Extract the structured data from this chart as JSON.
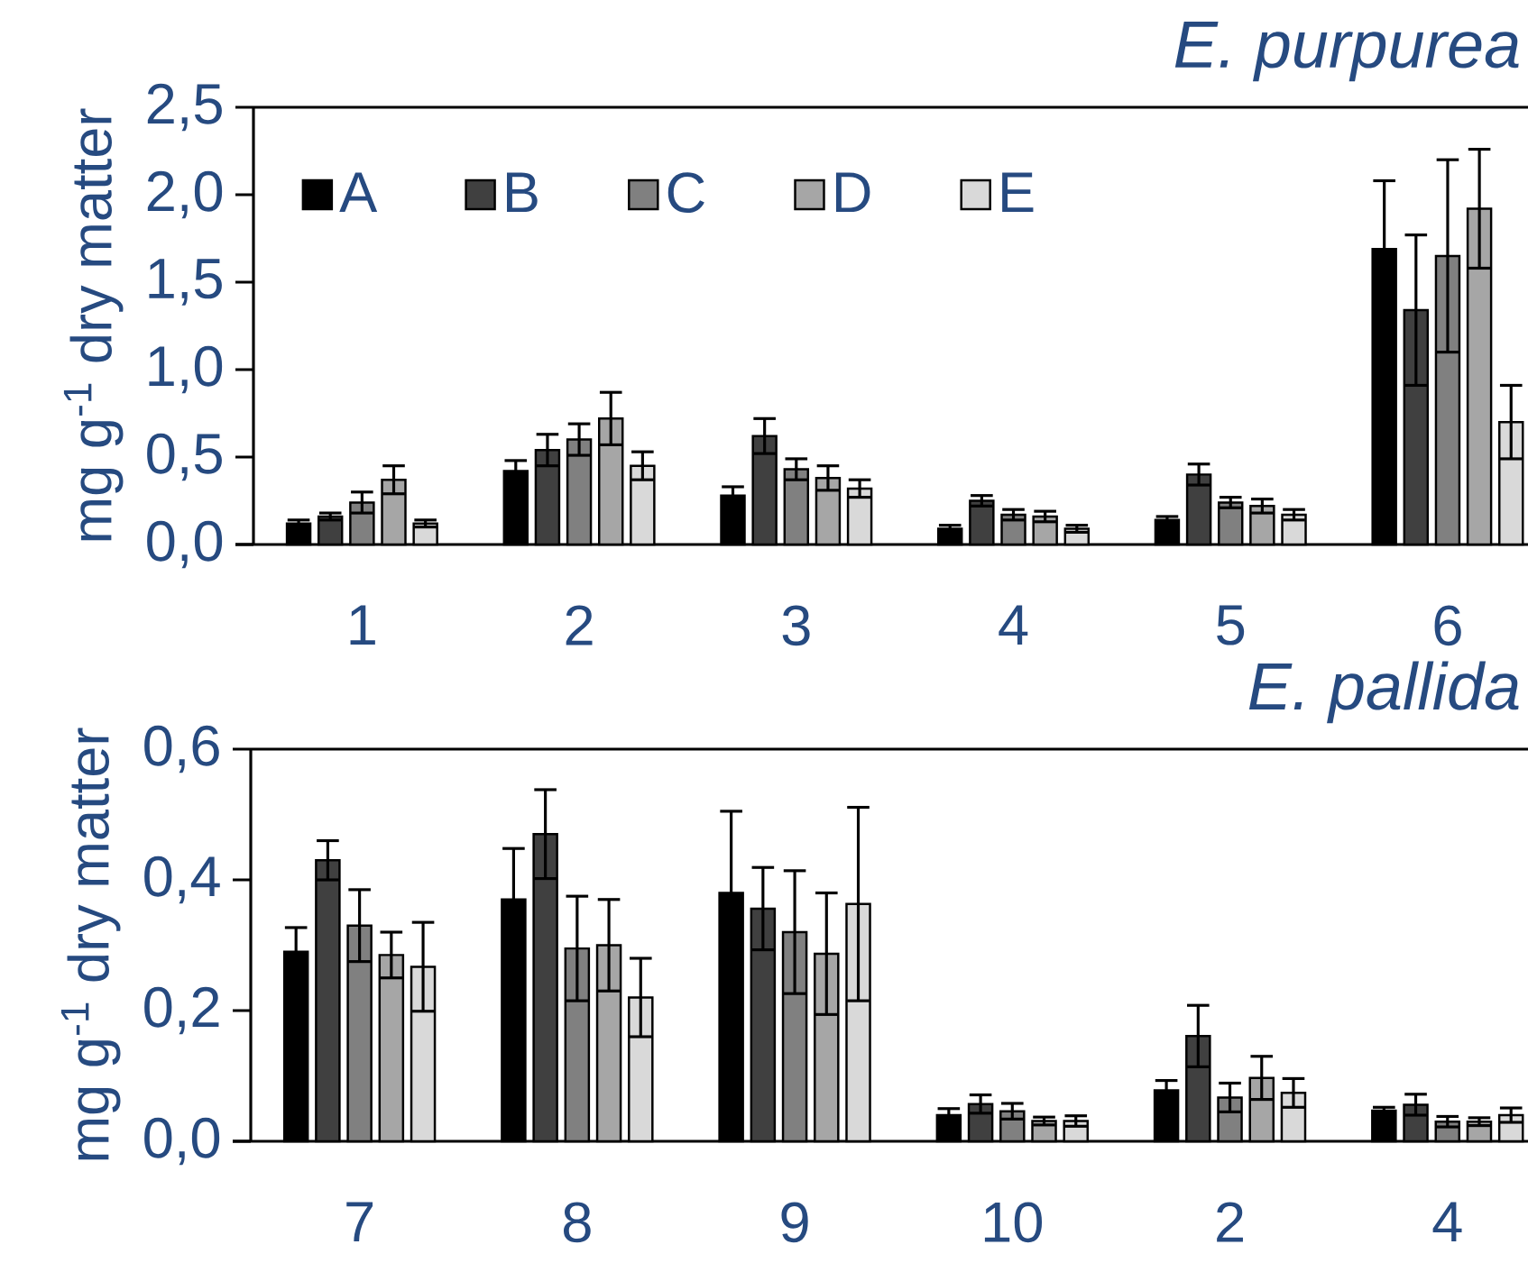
{
  "chart_data": [
    {
      "type": "bar",
      "title": "E. purpurea",
      "ylabel": "mg g$^{-1}$ dry matter",
      "categories": [
        "1",
        "2",
        "3",
        "4",
        "5",
        "6"
      ],
      "ylim": [
        0,
        2.5
      ],
      "yticks": [
        {
          "value": 0,
          "label": "0,0"
        },
        {
          "value": 0.5,
          "label": "0,5"
        },
        {
          "value": 1,
          "label": "1,0"
        },
        {
          "value": 1.5,
          "label": "1,5"
        },
        {
          "value": 2,
          "label": "2,0"
        },
        {
          "value": 2.5,
          "label": "2,5"
        }
      ],
      "legend": "top left",
      "series": [
        {
          "name": "A",
          "color": "#000000",
          "values": [
            0.12,
            0.42,
            0.28,
            0.09,
            0.14,
            1.69
          ],
          "errors": [
            0.02,
            0.06,
            0.05,
            0.02,
            0.02,
            0.39
          ]
        },
        {
          "name": "B",
          "color": "#404040",
          "values": [
            0.16,
            0.54,
            0.62,
            0.25,
            0.4,
            1.34
          ],
          "errors": [
            0.02,
            0.09,
            0.1,
            0.03,
            0.06,
            0.43
          ]
        },
        {
          "name": "C",
          "color": "#808080",
          "values": [
            0.24,
            0.6,
            0.43,
            0.17,
            0.24,
            1.65
          ],
          "errors": [
            0.06,
            0.09,
            0.06,
            0.03,
            0.03,
            0.55
          ]
        },
        {
          "name": "D",
          "color": "#a6a6a6",
          "values": [
            0.37,
            0.72,
            0.38,
            0.16,
            0.22,
            1.92
          ],
          "errors": [
            0.08,
            0.15,
            0.07,
            0.03,
            0.04,
            0.34
          ]
        },
        {
          "name": "E",
          "color": "#d9d9d9",
          "values": [
            0.12,
            0.45,
            0.32,
            0.09,
            0.17,
            0.7
          ],
          "errors": [
            0.02,
            0.08,
            0.05,
            0.02,
            0.03,
            0.21
          ]
        }
      ]
    },
    {
      "type": "bar",
      "title": "E. pallida",
      "ylabel": "mg g$^{-1}$ dry matter",
      "categories": [
        "7",
        "8",
        "9",
        "10",
        "2",
        "4"
      ],
      "ylim": [
        0,
        0.6
      ],
      "yticks": [
        {
          "value": 0,
          "label": "0,0"
        },
        {
          "value": 0.2,
          "label": "0,2"
        },
        {
          "value": 0.4,
          "label": "0,4"
        },
        {
          "value": 0.6,
          "label": "0,6"
        }
      ],
      "series": [
        {
          "color": "#000000",
          "values": [
            0.29,
            0.37,
            0.38,
            0.04,
            0.078,
            0.047
          ],
          "errors": [
            0.037,
            0.078,
            0.125,
            0.01,
            0.015,
            0.005
          ]
        },
        {
          "color": "#404040",
          "values": [
            0.43,
            0.47,
            0.356,
            0.057,
            0.161,
            0.056
          ],
          "errors": [
            0.03,
            0.068,
            0.063,
            0.014,
            0.047,
            0.016
          ]
        },
        {
          "color": "#808080",
          "values": [
            0.33,
            0.295,
            0.32,
            0.046,
            0.067,
            0.03
          ],
          "errors": [
            0.055,
            0.08,
            0.094,
            0.012,
            0.022,
            0.008
          ]
        },
        {
          "color": "#a6a6a6",
          "values": [
            0.285,
            0.3,
            0.287,
            0.031,
            0.097,
            0.03
          ],
          "errors": [
            0.035,
            0.07,
            0.093,
            0.006,
            0.033,
            0.006
          ]
        },
        {
          "color": "#d9d9d9",
          "values": [
            0.267,
            0.22,
            0.363,
            0.031,
            0.074,
            0.04
          ],
          "errors": [
            0.068,
            0.06,
            0.148,
            0.008,
            0.022,
            0.011
          ]
        }
      ]
    }
  ]
}
